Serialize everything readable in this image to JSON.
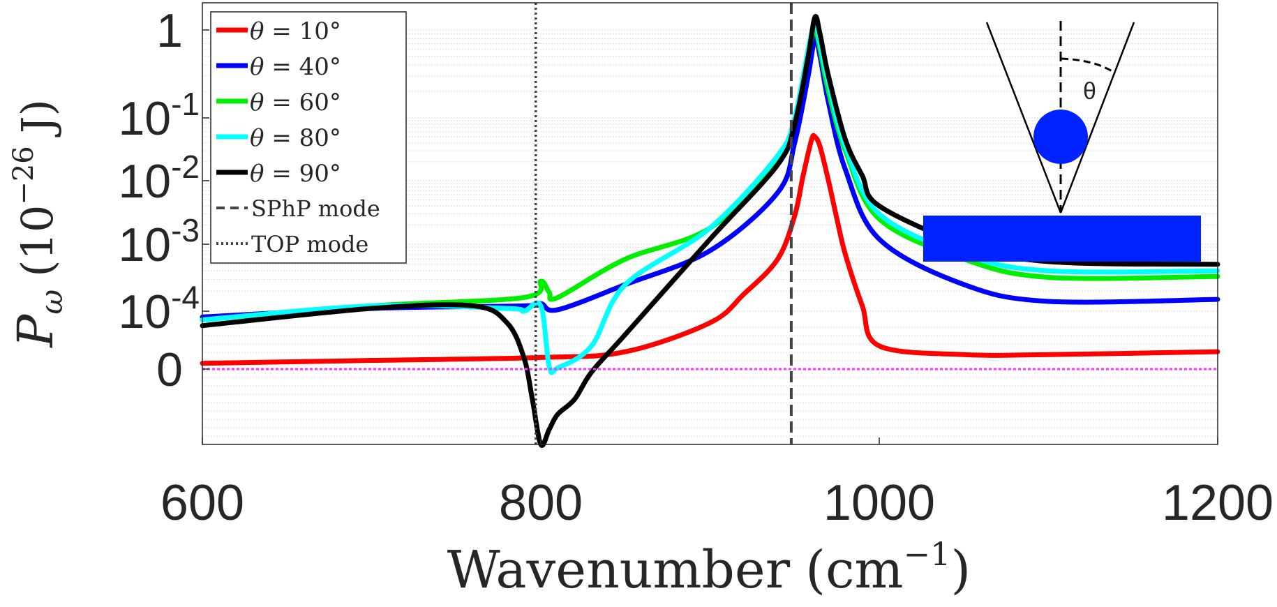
{
  "chart_data": {
    "type": "line",
    "title": "",
    "xlabel": "Wavenumber",
    "xlabel_unit": "(cm",
    "xlabel_unit_exp": "−1",
    "xlabel_unit_close": ")",
    "ylabel_symbol": "P",
    "ylabel_sub": "ω",
    "ylabel_unit": "(10",
    "ylabel_unit_exp": "−26",
    "ylabel_unit_close": "J)",
    "xlim": [
      600,
      1200
    ],
    "x_ticks": [
      "600",
      "800",
      "1000",
      "1200"
    ],
    "y_scale": "symlog",
    "y_ticks": [
      {
        "base": "0",
        "exp": ""
      },
      {
        "base": "10",
        "exp": "-4"
      },
      {
        "base": "10",
        "exp": "-3"
      },
      {
        "base": "10",
        "exp": "-2"
      },
      {
        "base": "10",
        "exp": "-1"
      },
      {
        "base": "1",
        "exp": ""
      }
    ],
    "ylim": [
      -0.0005,
      1.5
    ],
    "grid": true,
    "legend_position": "top-left",
    "series": [
      {
        "name": "θ = 10°",
        "symbol": "θ",
        "eq": " = 10°",
        "color": "#ff0000",
        "x": [
          600,
          700,
          800,
          850,
          900,
          920,
          940,
          950,
          955,
          960,
          962,
          965,
          970,
          975,
          980,
          990,
          1000,
          1050,
          1100,
          1200
        ],
        "y": [
          1e-05,
          1.5e-05,
          2e-05,
          3e-05,
          8e-05,
          0.00018,
          0.0006,
          0.0028,
          0.012,
          0.045,
          0.05,
          0.035,
          0.01,
          0.0025,
          0.0007,
          0.00012,
          4e-05,
          2.5e-05,
          2.5e-05,
          3e-05
        ]
      },
      {
        "name": "θ = 40°",
        "symbol": "θ",
        "eq": " = 40°",
        "color": "#0000ff",
        "x": [
          600,
          700,
          790,
          800,
          810,
          850,
          900,
          940,
          950,
          958,
          962,
          965,
          970,
          980,
          1000,
          1050,
          1100,
          1200
        ],
        "y": [
          9e-05,
          0.00011,
          0.00012,
          0.00013,
          0.000105,
          0.00025,
          0.0008,
          0.0065,
          0.04,
          0.3,
          0.8,
          0.5,
          0.15,
          0.015,
          0.0012,
          0.00025,
          0.00014,
          0.00015
        ]
      },
      {
        "name": "θ = 60°",
        "symbol": "θ",
        "eq": " = 60°",
        "color": "#00ee00",
        "x": [
          600,
          700,
          790,
          800,
          805,
          810,
          850,
          900,
          940,
          950,
          958,
          962,
          965,
          970,
          980,
          1000,
          1050,
          1100,
          1200
        ],
        "y": [
          8.5e-05,
          0.00012,
          0.00016,
          0.00028,
          0.00019,
          0.00016,
          0.0006,
          0.0018,
          0.02,
          0.09,
          0.55,
          1.0,
          0.6,
          0.2,
          0.03,
          0.0025,
          0.0006,
          0.00032,
          0.00033
        ]
      },
      {
        "name": "θ = 80°",
        "symbol": "θ",
        "eq": " = 80°",
        "color": "#00ffff",
        "x": [
          600,
          700,
          780,
          790,
          800,
          805,
          810,
          830,
          850,
          900,
          940,
          950,
          958,
          962,
          965,
          970,
          980,
          1000,
          1050,
          1100,
          1200
        ],
        "y": [
          8.5e-05,
          0.00012,
          0.00011,
          0.0001,
          0.00012,
          4e-06,
          2e-06,
          4e-05,
          0.00025,
          0.0018,
          0.025,
          0.1,
          0.6,
          1.2,
          0.7,
          0.25,
          0.035,
          0.003,
          0.0007,
          0.0004,
          0.0004
        ]
      },
      {
        "name": "θ = 90°",
        "symbol": "θ",
        "eq": " = 90°",
        "color": "#000000",
        "x": [
          600,
          700,
          760,
          780,
          790,
          795,
          800,
          805,
          810,
          820,
          830,
          850,
          900,
          940,
          950,
          958,
          962,
          965,
          970,
          980,
          990,
          1000,
          1050,
          1100,
          1200
        ],
        "y": [
          7.5e-05,
          0.00011,
          0.00012,
          8e-05,
          2e-05,
          -0.0002,
          -0.0005,
          -0.0004,
          -0.0003,
          -0.0002,
          -2e-05,
          6e-05,
          0.0012,
          0.018,
          0.08,
          0.5,
          1.4,
          0.9,
          0.3,
          0.045,
          0.012,
          0.004,
          0.001,
          0.00055,
          0.0005
        ]
      }
    ],
    "reference_lines": [
      {
        "name": "SPhP mode",
        "x": 948,
        "style": "dashed",
        "color": "#444444"
      },
      {
        "name": "TOP mode",
        "x": 797,
        "style": "dotted",
        "color": "#444444"
      }
    ],
    "zero_line": {
      "y": 0,
      "color": "#ff33ff"
    },
    "inset_label": "θ",
    "inset_colors": {
      "particle": "#0022ff",
      "substrate": "#0022ff"
    }
  }
}
